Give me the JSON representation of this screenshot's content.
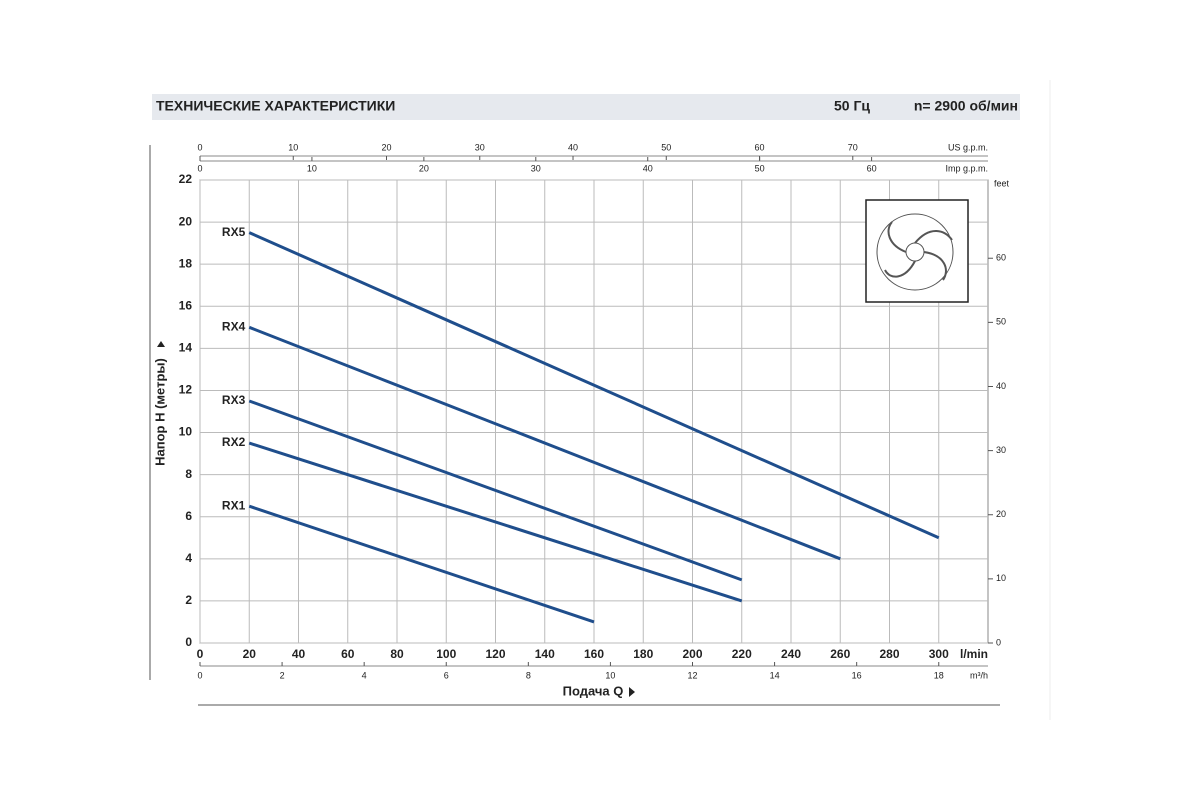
{
  "header": {
    "title": "ТЕХНИЧЕСКИЕ ХАРАКТЕРИСТИКИ",
    "frequency": "50 Гц",
    "speed": "n= 2900 об/мин"
  },
  "chart_data": {
    "type": "line",
    "xlabel": "Подача Q",
    "xunit": "l/min",
    "ylabel": "Напор H (метры)",
    "xlim": [
      0,
      320
    ],
    "xticks": [
      0,
      20,
      40,
      60,
      80,
      100,
      120,
      140,
      160,
      180,
      200,
      220,
      240,
      260,
      280,
      300
    ],
    "ylim": [
      0,
      22
    ],
    "yticks": [
      0,
      2,
      4,
      6,
      8,
      10,
      12,
      14,
      16,
      18,
      20,
      22
    ],
    "y2label": "feet",
    "y2lim": [
      0,
      72.2
    ],
    "y2ticks": [
      0,
      10,
      20,
      30,
      40,
      50,
      60
    ],
    "top_axes": [
      {
        "label": "US g.p.m.",
        "xlim": [
          0,
          84.5
        ],
        "xticks": [
          0,
          10,
          20,
          30,
          40,
          50,
          60,
          70
        ]
      },
      {
        "label": "Imp g.p.m.",
        "xlim": [
          0,
          70.4
        ],
        "xticks": [
          0,
          10,
          20,
          30,
          40,
          50,
          60
        ]
      }
    ],
    "bottom_axis2": {
      "label": "m³/h",
      "xlim": [
        0,
        19.2
      ],
      "xticks": [
        0,
        2,
        4,
        6,
        8,
        10,
        12,
        14,
        16,
        18
      ]
    },
    "grid": true,
    "series": [
      {
        "name": "RX5",
        "color": "#1f4e8c",
        "x": [
          20,
          300
        ],
        "values": [
          19.5,
          5
        ]
      },
      {
        "name": "RX4",
        "color": "#1f4e8c",
        "x": [
          20,
          260
        ],
        "values": [
          15,
          4
        ]
      },
      {
        "name": "RX3",
        "color": "#1f4e8c",
        "x": [
          20,
          220
        ],
        "values": [
          11.5,
          3
        ]
      },
      {
        "name": "RX2",
        "color": "#1f4e8c",
        "x": [
          20,
          220
        ],
        "values": [
          9.5,
          2
        ]
      },
      {
        "name": "RX1",
        "color": "#1f4e8c",
        "x": [
          20,
          160
        ],
        "values": [
          6.5,
          1
        ]
      }
    ]
  }
}
